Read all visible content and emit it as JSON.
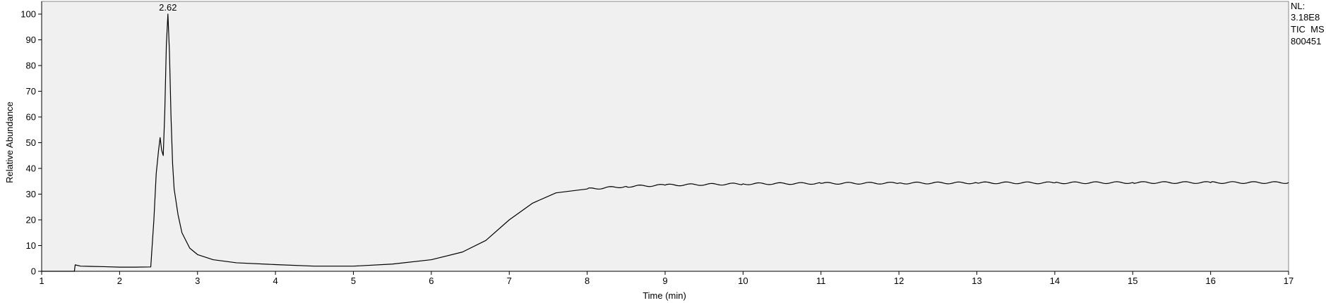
{
  "chart_data": {
    "type": "line",
    "xlabel": "Time (min)",
    "ylabel": "Relative Abundance",
    "xlim": [
      1,
      17
    ],
    "ylim": [
      0,
      100
    ],
    "x_ticks": [
      1,
      2,
      3,
      4,
      5,
      6,
      7,
      8,
      9,
      10,
      11,
      12,
      13,
      14,
      15,
      16,
      17
    ],
    "y_ticks": [
      0,
      10,
      20,
      30,
      40,
      50,
      60,
      70,
      80,
      90,
      100
    ],
    "grid": false,
    "plot_background": "#f0f0f0",
    "line_color": "#000000",
    "info_text": [
      "NL:",
      "3.18E8",
      "TIC  MS",
      "800451"
    ],
    "peak_annotations": [
      {
        "x": 2.62,
        "y": 100,
        "label": "2.62"
      }
    ],
    "series": [
      {
        "x": [
          1.0,
          1.42,
          1.43,
          1.5,
          1.8,
          2.0,
          2.2,
          2.4,
          2.44,
          2.47,
          2.5,
          2.52,
          2.54,
          2.56,
          2.58,
          2.6,
          2.62,
          2.64,
          2.66,
          2.68,
          2.7,
          2.75,
          2.8,
          2.9,
          3.0,
          3.2,
          3.5,
          4.0,
          4.5,
          5.0,
          5.5,
          6.0,
          6.4,
          6.7,
          7.0,
          7.3,
          7.6,
          8.0,
          8.5,
          9.0,
          10.0,
          11.0,
          12.0,
          13.0,
          14.0,
          15.0,
          16.0,
          17.0
        ],
        "y": [
          0.0,
          0.0,
          2.5,
          2.0,
          1.8,
          1.6,
          1.6,
          1.7,
          20.0,
          38.0,
          47.0,
          52.0,
          47.0,
          45.0,
          62.0,
          88.0,
          100.0,
          85.0,
          60.0,
          42.0,
          32.0,
          22.0,
          15.0,
          9.0,
          6.5,
          4.5,
          3.3,
          2.6,
          2.0,
          2.0,
          2.8,
          4.5,
          7.5,
          12.0,
          20.0,
          26.5,
          30.5,
          32.0,
          33.0,
          33.5,
          34.0,
          34.2,
          34.3,
          34.4,
          34.4,
          34.5,
          34.5,
          34.5
        ]
      }
    ]
  }
}
